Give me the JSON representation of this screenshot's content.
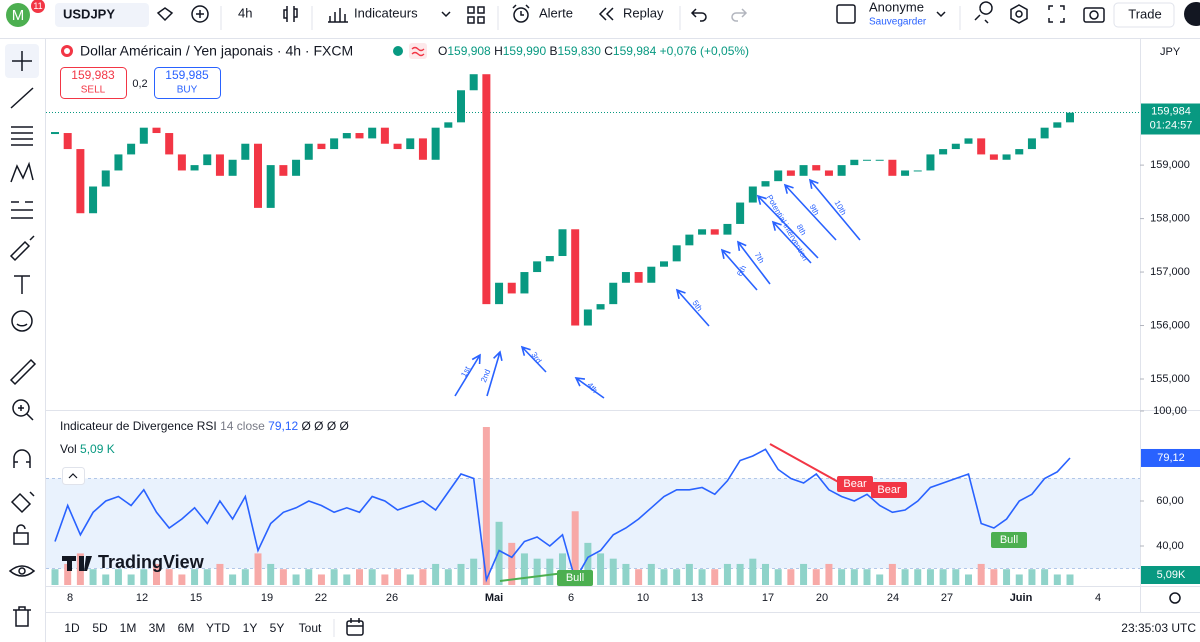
{
  "toolbar": {
    "logo": "M",
    "badge": "11",
    "symbol": "USDJPY",
    "interval": "4h",
    "indicators": "Indicateurs",
    "alert": "Alerte",
    "replay": "Replay",
    "user": "Anonyme",
    "save": "Sauvegarder",
    "trade": "Trade"
  },
  "legend": {
    "title": "Dollar Américain / Yen japonais · 4h · FXCM",
    "ohlc": [
      {
        "label": "O",
        "value": "159,908"
      },
      {
        "label": "H",
        "value": "159,990"
      },
      {
        "label": "B",
        "value": "159,830"
      },
      {
        "label": "C",
        "value": "159,984"
      }
    ],
    "change": "+0,076 (+0,05%)",
    "sell_price": "159,983",
    "sell": "SELL",
    "spread": "0,2",
    "buy_price": "159,985",
    "buy": "BUY"
  },
  "price_pane": {
    "currency": "JPY",
    "ylim": [
      154.42,
      161.34
    ],
    "yticks": [
      {
        "value": 155,
        "label": "155,000"
      },
      {
        "value": 156,
        "label": "156,000"
      },
      {
        "value": 157,
        "label": "157,000"
      },
      {
        "value": 158,
        "label": "158,000"
      },
      {
        "value": 159,
        "label": "159,000"
      }
    ],
    "closes": [
      159.6,
      159.3,
      158.1,
      158.6,
      158.9,
      159.2,
      159.4,
      159.7,
      159.6,
      159.2,
      158.9,
      159.0,
      159.2,
      158.8,
      159.1,
      159.4,
      158.2,
      159.0,
      158.8,
      159.1,
      159.4,
      159.3,
      159.5,
      159.6,
      159.5,
      159.7,
      159.4,
      159.3,
      159.5,
      159.1,
      159.7,
      159.8,
      160.4,
      160.7,
      156.4,
      156.8,
      156.6,
      157.0,
      157.2,
      157.3,
      157.8,
      156.0,
      156.3,
      156.4,
      156.8,
      157.0,
      156.8,
      157.1,
      157.2,
      157.5,
      157.7,
      157.8,
      157.7,
      157.9,
      158.3,
      158.6,
      158.7,
      158.9,
      158.8,
      159.0,
      158.9,
      158.8,
      159.0,
      159.1,
      159.1,
      159.1,
      158.8,
      158.9,
      158.9,
      159.2,
      159.3,
      159.4,
      159.5,
      159.2,
      159.1,
      159.2,
      159.3,
      159.5,
      159.7,
      159.8,
      159.98
    ],
    "last": {
      "value": 159.984,
      "label": "159,984"
    },
    "countdown": "01:24:57",
    "annotations": [
      "1st",
      "2nd",
      "3rd",
      "4th",
      "5th",
      "6th",
      "7th",
      "8th",
      "Potential intervention",
      "9th",
      "10th"
    ]
  },
  "rsi_pane": {
    "title": "Indicateur de Divergence RSI",
    "params": "14 close",
    "flags": "Ø Ø Ø Ø",
    "vol_label": "Vol",
    "vol_value": "5,09 K",
    "vol_axis": "5,09K",
    "ylim": [
      22.67,
      100
    ],
    "yticks": [
      {
        "value": 100,
        "label": "100,00"
      },
      {
        "value": 60,
        "label": "60,00"
      },
      {
        "value": 40,
        "label": "40,00"
      }
    ],
    "band": [
      30,
      70
    ],
    "rsi": [
      42,
      58,
      45,
      55,
      60,
      62,
      58,
      65,
      55,
      48,
      52,
      57,
      50,
      60,
      52,
      62,
      38,
      50,
      55,
      57,
      60,
      58,
      55,
      57,
      55,
      62,
      60,
      56,
      58,
      60,
      56,
      64,
      72,
      70,
      25,
      38,
      35,
      42,
      44,
      40,
      45,
      25,
      35,
      38,
      45,
      48,
      52,
      57,
      62,
      65,
      65,
      66,
      63,
      69,
      78,
      80,
      83,
      74,
      70,
      68,
      72,
      65,
      62,
      60,
      63,
      58,
      55,
      56,
      60,
      66,
      68,
      70,
      72,
      50,
      48,
      52,
      60,
      63,
      70,
      73,
      79.12
    ],
    "volume": [
      3,
      4,
      6,
      3,
      2,
      3,
      2,
      3,
      4,
      3,
      2,
      3,
      3,
      4,
      2,
      3,
      6,
      4,
      3,
      2,
      3,
      2,
      3,
      2,
      3,
      3,
      2,
      3,
      2,
      3,
      4,
      3,
      4,
      5,
      30,
      12,
      8,
      6,
      5,
      5,
      6,
      14,
      8,
      6,
      5,
      4,
      3,
      4,
      3,
      3,
      4,
      3,
      3,
      4,
      4,
      5,
      4,
      3,
      3,
      4,
      3,
      4,
      3,
      3,
      3,
      2,
      4,
      3,
      3,
      3,
      3,
      3,
      2,
      4,
      3,
      3,
      2,
      3,
      3,
      2,
      2
    ],
    "last": {
      "value": 79.12,
      "label": "79,12"
    },
    "divergences": [
      "Bear",
      "Bear",
      "Bull",
      "Bull"
    ]
  },
  "time_axis": [
    "8",
    "12",
    "15",
    "19",
    "22",
    "26",
    "Mai",
    "6",
    "10",
    "13",
    "17",
    "20",
    "24",
    "27",
    "Juin",
    "4"
  ],
  "bottom": {
    "ranges": [
      "1D",
      "5D",
      "1M",
      "3M",
      "6M",
      "YTD",
      "1Y",
      "5Y",
      "Tout"
    ],
    "clock": "23:35:03 UTC"
  },
  "watermark": "TradingView"
}
